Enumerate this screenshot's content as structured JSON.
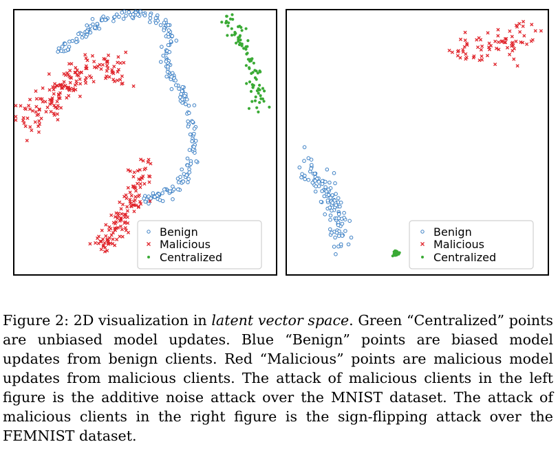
{
  "colors": {
    "benign": "#3b7fc4",
    "malicious": "#e0242b",
    "centralized": "#3aaa35"
  },
  "legend": {
    "benign": "Benign",
    "malicious": "Malicious",
    "centralized": "Centralized"
  },
  "chart_data": [
    {
      "type": "scatter",
      "position": "left",
      "title": "",
      "xlabel": "",
      "ylabel": "",
      "axes_ticks": false,
      "grid": false,
      "legend_location": "lower-right",
      "xlim": [
        0,
        100
      ],
      "ylim": [
        0,
        100
      ],
      "series": [
        {
          "name": "Benign",
          "marker": "circle",
          "color": "#3b7fc4",
          "count": 260,
          "path": [
            [
              18,
              83
            ],
            [
              22,
              88
            ],
            [
              28,
              92
            ],
            [
              33,
              96
            ],
            [
              40,
              98.5
            ],
            [
              46,
              99
            ],
            [
              53,
              97
            ],
            [
              58,
              94
            ],
            [
              60,
              90
            ],
            [
              58,
              85
            ],
            [
              59,
              78
            ],
            [
              62,
              72
            ],
            [
              65,
              66
            ],
            [
              67,
              60
            ],
            [
              68,
              54
            ],
            [
              68,
              48
            ],
            [
              67,
              42
            ],
            [
              66,
              38
            ],
            [
              63,
              34
            ],
            [
              58,
              31
            ],
            [
              52,
              29
            ],
            [
              48,
              27.5
            ]
          ],
          "spread": 1.1
        },
        {
          "name": "Malicious",
          "marker": "x",
          "color": "#e0242b",
          "count": 170,
          "path": [
            [
              5,
              56
            ],
            [
              8,
              60
            ],
            [
              12,
              64
            ],
            [
              16,
              68
            ],
            [
              20,
              72
            ],
            [
              24,
              75
            ],
            [
              28,
              78
            ],
            [
              32,
              79
            ],
            [
              36,
              78
            ],
            [
              40,
              77
            ]
          ],
          "spread": 3.0
        },
        {
          "name": "Malicious",
          "marker": "x",
          "color": "#e0242b",
          "count": 130,
          "path": [
            [
              32,
              8
            ],
            [
              35,
              12
            ],
            [
              38,
              17
            ],
            [
              41,
              21
            ],
            [
              43,
              25
            ],
            [
              45,
              29
            ],
            [
              47,
              33
            ],
            [
              49,
              38
            ],
            [
              50,
              42
            ]
          ],
          "spread": 2.2
        },
        {
          "name": "Centralized",
          "marker": "dot",
          "color": "#3aaa35",
          "count": 85,
          "path": [
            [
              81,
              97
            ],
            [
              84,
              93
            ],
            [
              87,
              89
            ],
            [
              89,
              84
            ],
            [
              91,
              80
            ],
            [
              92,
              75
            ],
            [
              93,
              71
            ],
            [
              93,
              67
            ],
            [
              92,
              63
            ]
          ],
          "spread": 1.6
        }
      ]
    },
    {
      "type": "scatter",
      "position": "right",
      "title": "",
      "xlabel": "",
      "ylabel": "",
      "axes_ticks": false,
      "grid": false,
      "legend_location": "lower-right",
      "xlim": [
        0,
        100
      ],
      "ylim": [
        0,
        100
      ],
      "series": [
        {
          "name": "Malicious",
          "marker": "x",
          "color": "#e0242b",
          "count": 75,
          "path": [
            [
              65,
              83
            ],
            [
              71,
              85
            ],
            [
              77,
              87
            ],
            [
              83,
              88
            ],
            [
              89,
              89
            ],
            [
              93,
              90
            ]
          ],
          "spread": 3.0
        },
        {
          "name": "Benign",
          "marker": "circle",
          "color": "#3b7fc4",
          "count": 115,
          "path": [
            [
              6,
              42
            ],
            [
              10,
              38
            ],
            [
              14,
              33
            ],
            [
              17,
              27
            ],
            [
              19,
              22
            ],
            [
              20,
              17
            ],
            [
              20,
              13
            ],
            [
              21,
              11
            ]
          ],
          "spread": 1.9
        },
        {
          "name": "Centralized",
          "marker": "dot",
          "color": "#3aaa35",
          "count": 30,
          "path": [
            [
              41.5,
              8
            ],
            [
              42.3,
              8.3
            ]
          ],
          "spread": 0.5
        }
      ]
    }
  ],
  "caption": {
    "lead": "Figure 2: 2D visualization in ",
    "emph": "latent vector space",
    "rest": ". Green “Centralized” points are unbiased model updates. Blue “Benign” points are biased model updates from benign clients. Red “Malicious” points are malicious model updates from malicious clients. The attack of malicious clients in the left figure is the additive noise attack over the MNIST dataset. The attack of malicious clients in the right figure is the sign-flipping attack over the FEMNIST dataset."
  }
}
